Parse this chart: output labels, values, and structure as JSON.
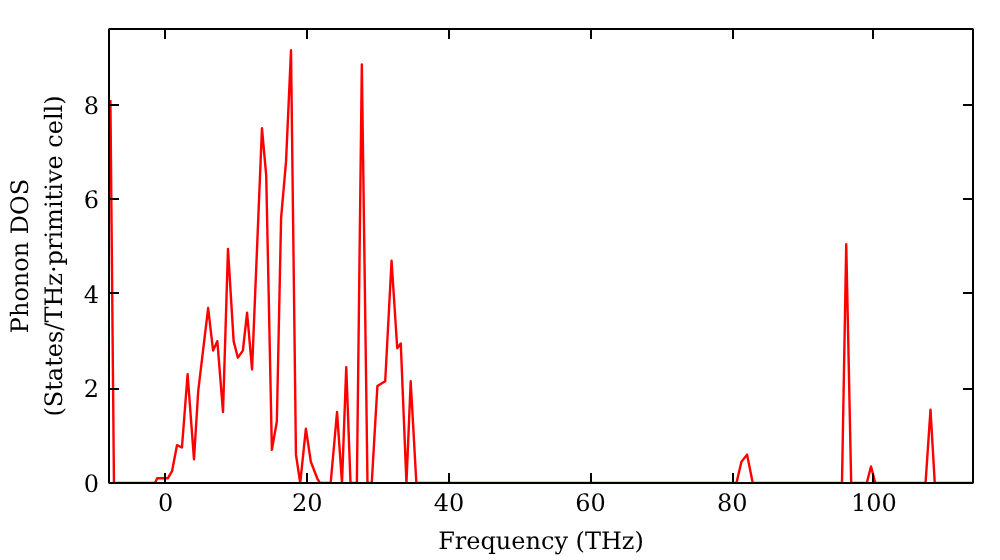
{
  "chart_data": {
    "type": "line",
    "xlabel": "Frequency (THz)",
    "ylabel": "Phonon DOS\n(States/THz·primitive cell)",
    "xlim": [
      -8,
      114
    ],
    "ylim": [
      0,
      9.6
    ],
    "xticks": [
      0,
      20,
      40,
      60,
      80,
      100
    ],
    "yticks": [
      0,
      2,
      4,
      6,
      8
    ],
    "grid": false,
    "marker": "none",
    "line_style": "solid",
    "series": [
      {
        "color": "#ff0000",
        "x": [
          -7.8,
          -7.3,
          -1.5,
          -1.2,
          0.3,
          0.9,
          1.6,
          2.3,
          3.1,
          4.0,
          4.6,
          6.0,
          6.7,
          7.3,
          8.1,
          8.8,
          9.6,
          10.2,
          10.9,
          11.5,
          12.2,
          13.6,
          14.2,
          15.0,
          15.7,
          16.3,
          17.0,
          17.7,
          18.4,
          19.0,
          19.8,
          20.5,
          21.4,
          21.8,
          23.3,
          24.2,
          24.9,
          25.5,
          26.1,
          27.0,
          27.7,
          28.5,
          29.1,
          29.9,
          31.0,
          31.9,
          32.7,
          33.2,
          34.0,
          34.6,
          35.4,
          80.6,
          81.3,
          82.1,
          82.9,
          95.5,
          96.1,
          96.8,
          99.0,
          99.6,
          100.2,
          107.3,
          108.0,
          108.6,
          114
        ],
        "values": [
          8.1,
          0,
          0,
          0.1,
          0.1,
          0.25,
          0.8,
          0.75,
          2.3,
          0.5,
          1.95,
          3.7,
          2.8,
          3.0,
          1.5,
          4.95,
          3.0,
          2.65,
          2.8,
          3.6,
          2.4,
          7.5,
          6.5,
          0.7,
          1.3,
          5.6,
          6.8,
          9.15,
          0.6,
          0,
          1.15,
          0.45,
          0.1,
          0,
          0,
          1.5,
          0,
          2.45,
          0,
          0,
          8.85,
          0,
          0,
          2.05,
          2.15,
          4.7,
          2.85,
          2.95,
          0,
          2.15,
          0,
          0,
          0.45,
          0.6,
          0,
          0,
          5.05,
          0,
          0,
          0.35,
          0,
          0,
          1.55,
          0,
          0
        ]
      }
    ]
  }
}
